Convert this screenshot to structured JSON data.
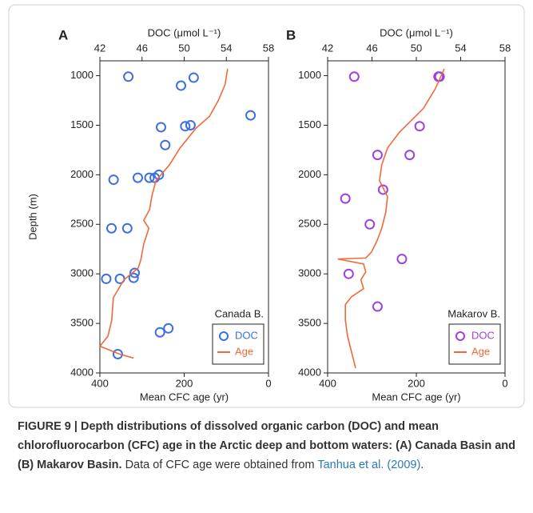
{
  "chart_data": [
    {
      "type": "scatter",
      "label": "A",
      "annotation": "Canada B.",
      "xlabel": "DOC (μmol L⁻¹)",
      "x2label": "Mean CFC age (yr)",
      "ylabel": "Depth (m)",
      "xlim": [
        42,
        58
      ],
      "xticks": [
        42,
        46,
        50,
        54,
        58
      ],
      "x2lim": [
        400,
        0
      ],
      "x2ticks": [
        400,
        200,
        0
      ],
      "ylim": [
        4000,
        850
      ],
      "yticks": [
        1000,
        1500,
        2000,
        2500,
        3000,
        3500,
        4000
      ],
      "series": [
        {
          "name": "DOC",
          "type": "scatter",
          "color": "#3b6fe3",
          "x": [
            44.7,
            50.9,
            49.7,
            56.3,
            50.1,
            50.6,
            47.8,
            48.2,
            43.3,
            45.6,
            46.7,
            47.2,
            47.6,
            43.1,
            44.6,
            45.3,
            45.2,
            42.6,
            43.9,
            48.5,
            47.7,
            43.7
          ],
          "y": [
            1010,
            1020,
            1100,
            1400,
            1510,
            1500,
            1520,
            1700,
            2050,
            2030,
            2030,
            2030,
            2000,
            2540,
            2540,
            2990,
            3040,
            3050,
            3050,
            3550,
            3590,
            3810
          ]
        },
        {
          "name": "Age",
          "type": "line",
          "axis": "x2",
          "color": "#f0693a",
          "x": [
            97,
            103,
            119,
            140,
            172,
            210,
            235,
            267,
            277,
            282,
            296,
            284,
            296,
            303,
            309,
            343,
            368,
            372,
            381,
            400,
            353,
            320
          ],
          "y": [
            930,
            1090,
            1250,
            1410,
            1530,
            1730,
            1900,
            2060,
            2220,
            2350,
            2460,
            2540,
            2700,
            2860,
            2940,
            3060,
            3240,
            3470,
            3630,
            3730,
            3810,
            3850
          ]
        }
      ]
    },
    {
      "type": "scatter",
      "label": "B",
      "annotation": "Makarov B.",
      "xlabel": "DOC (μmol L⁻¹)",
      "x2label": "Mean CFC age (yr)",
      "xlim": [
        42,
        58
      ],
      "xticks": [
        42,
        46,
        50,
        54,
        58
      ],
      "x2lim": [
        400,
        0
      ],
      "x2ticks": [
        400,
        200,
        0
      ],
      "ylim": [
        4000,
        850
      ],
      "yticks": [
        1000,
        1500,
        2000,
        2500,
        3000,
        3500,
        4000
      ],
      "series": [
        {
          "name": "DOC",
          "type": "scatter",
          "color": "#a03fe0",
          "x": [
            44.4,
            52.0,
            52.1,
            50.3,
            46.5,
            49.4,
            47.0,
            43.6,
            45.8,
            48.7,
            43.9,
            46.5
          ],
          "y": [
            1010,
            1010,
            1010,
            1510,
            1800,
            1800,
            2150,
            2240,
            2500,
            2850,
            3000,
            3330
          ]
        },
        {
          "name": "Age",
          "type": "line",
          "axis": "x2",
          "color": "#f0693a",
          "x": [
            137,
            157,
            184,
            211,
            238,
            265,
            278,
            283,
            265,
            269,
            278,
            288,
            301,
            314,
            377,
            319,
            314,
            325,
            319,
            346,
            360,
            360,
            355,
            346,
            337
          ],
          "y": [
            930,
            1130,
            1330,
            1450,
            1570,
            1730,
            1900,
            2060,
            2220,
            2380,
            2540,
            2660,
            2780,
            2840,
            2850,
            2900,
            2980,
            3060,
            3150,
            3230,
            3310,
            3470,
            3630,
            3790,
            3950
          ]
        }
      ]
    }
  ],
  "caption": {
    "label": "FIGURE 9 |",
    "bold": "Depth distributions of dissolved organic carbon (DOC) and mean chlorofluorocarbon (CFC) age in the Arctic deep and bottom waters: (A) Canada Basin and (B) Makarov Basin.",
    "text": "Data of CFC age were obtained from",
    "citation": "Tanhua et al. (2009)",
    "end": "."
  }
}
